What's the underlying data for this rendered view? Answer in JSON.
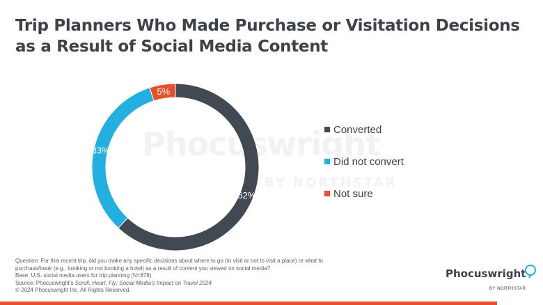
{
  "title": {
    "line1": "Trip Planners Who Made Purchase or Visitation Decisions",
    "line2": "as a Result of Social Media Content"
  },
  "watermark": {
    "name": "Phocuswright",
    "sub": "BY NORTHSTAR"
  },
  "chart_data": {
    "type": "pie",
    "donut": true,
    "categories": [
      "Converted",
      "Did not convert",
      "Not sure"
    ],
    "values": [
      62,
      33,
      5
    ],
    "value_labels": [
      "62%",
      "33%",
      "5%"
    ],
    "colors": [
      "#414952",
      "#23afe0",
      "#e8502c"
    ],
    "legend_position": "right"
  },
  "footnote": {
    "question": "Question: For this recent trip, did you make any specific decisions about where to go (to visit or not to visit a place) or what to",
    "question2": "purchase/book (e.g., booking or not booking a hotel) as a result of content you viewed on social media?",
    "base": "Base: U.S. social media users for trip planning (N=878)",
    "source_prefix": "Source: Phocuswright’s ",
    "source_title": "Scroll, Heart, Fly: Social Media’s Impact on Travel 2024",
    "copyright": "© 2024 Phocuswright Inc. All Rights Reserved."
  },
  "logo": {
    "name": "Phocuswright",
    "sub": "BY NORTHSTAR"
  },
  "colors": {
    "accent": "#e8502c",
    "text": "#3d4148"
  }
}
